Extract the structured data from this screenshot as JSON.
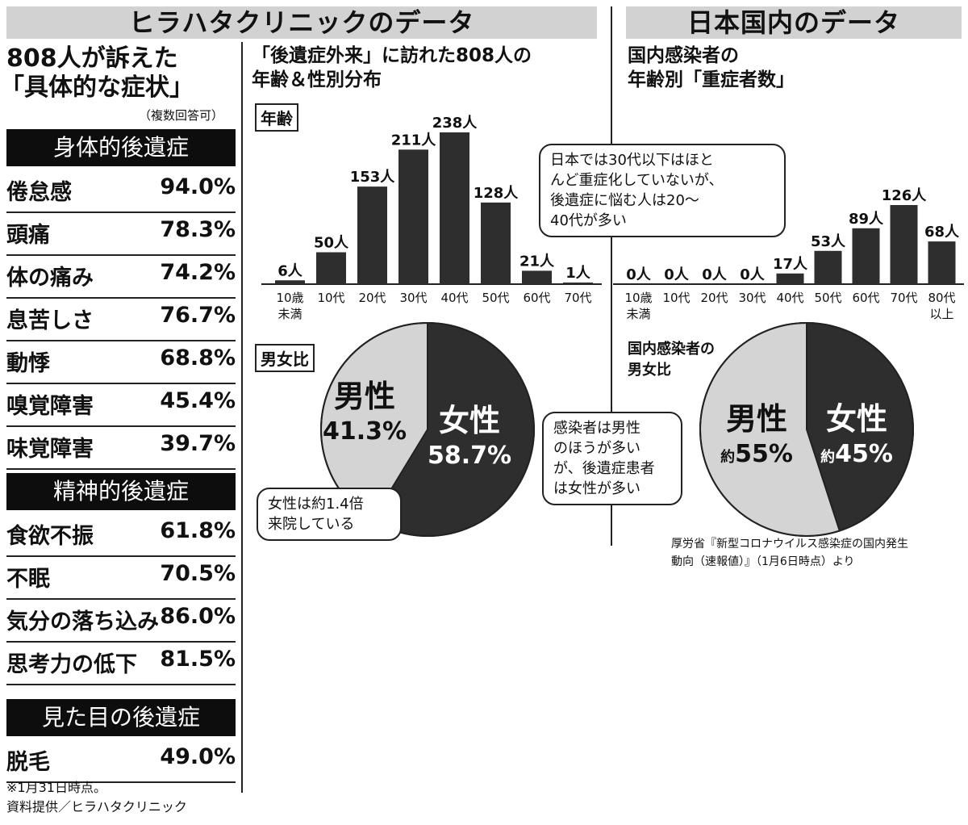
{
  "headers": {
    "clinic": "ヒラハタクリニックのデータ",
    "japan": "日本国内のデータ"
  },
  "symptoms": {
    "title_line1": "808人が訴えた",
    "title_line2": "「具体的な症状」",
    "note": "（複数回答可）",
    "categories": [
      {
        "name": "身体的後遺症",
        "items": [
          {
            "label": "倦怠感",
            "value": "94.0%"
          },
          {
            "label": "頭痛",
            "value": "78.3%"
          },
          {
            "label": "体の痛み",
            "value": "74.2%"
          },
          {
            "label": "息苦しさ",
            "value": "76.7%"
          },
          {
            "label": "動悸",
            "value": "68.8%"
          },
          {
            "label": "嗅覚障害",
            "value": "45.4%"
          },
          {
            "label": "味覚障害",
            "value": "39.7%"
          }
        ]
      },
      {
        "name": "精神的後遺症",
        "items": [
          {
            "label": "食欲不振",
            "value": "61.8%"
          },
          {
            "label": "不眠",
            "value": "70.5%"
          },
          {
            "label": "気分の落ち込み",
            "value": "86.0%"
          },
          {
            "label": "思考力の低下",
            "value": "81.5%"
          }
        ]
      },
      {
        "name": "見た目の後遺症",
        "items": [
          {
            "label": "脱毛",
            "value": "49.0%"
          }
        ]
      }
    ],
    "footnote1": "※1月31日時点。",
    "footnote2": "資料提供／ヒラハタクリニック"
  },
  "clinic_age": {
    "title_line1": "「後遺症外来」に訪れた808人の",
    "title_line2": "年齢＆性別分布",
    "box_age": "年齢",
    "box_sex": "男女比"
  },
  "japan_severe": {
    "title_line1": "国内感染者の",
    "title_line2": "年齢別「重症者数」",
    "sex_title_line1": "国内感染者の",
    "sex_title_line2": "男女比",
    "source_line1": "厚労省『新型コロナウイルス感染症の国内発生",
    "source_line2": "動向（速報値）』（1月6日時点）より"
  },
  "bubbles": {
    "age_note": [
      "日本では30代以下はほと",
      "んど重症化していないが、",
      "後遺症に悩む人は20〜",
      "40代が多い"
    ],
    "female_ratio": [
      "女性は約1.4倍",
      "来院している"
    ],
    "infected_note": [
      "感染者は男性",
      "のほうが多い",
      "が、後遺症患者",
      "は女性が多い"
    ]
  },
  "colors": {
    "dark": "#2e2e2e",
    "light": "#d4d4d4",
    "header": "#d2d2d2"
  },
  "chart_data": [
    {
      "type": "bar",
      "unit": "人",
      "categories": [
        "10歳\n未満",
        "10代",
        "20代",
        "30代",
        "40代",
        "50代",
        "60代",
        "70代"
      ],
      "values": [
        6,
        50,
        153,
        211,
        238,
        128,
        21,
        1
      ]
    },
    {
      "type": "pie",
      "slices": [
        {
          "label": "男性",
          "value": 41.3,
          "text": "41.3%"
        },
        {
          "label": "女性",
          "value": 58.7,
          "text": "58.7%"
        }
      ]
    },
    {
      "type": "bar",
      "unit": "人",
      "categories": [
        "10歳\n未満",
        "10代",
        "20代",
        "30代",
        "40代",
        "50代",
        "60代",
        "70代",
        "80代\n以上"
      ],
      "values": [
        0,
        0,
        0,
        0,
        17,
        53,
        89,
        126,
        68
      ]
    },
    {
      "type": "pie",
      "slices": [
        {
          "label": "男性",
          "value": 55,
          "prefix": "約",
          "text": "55%"
        },
        {
          "label": "女性",
          "value": 45,
          "prefix": "約",
          "text": "45%"
        }
      ]
    }
  ]
}
